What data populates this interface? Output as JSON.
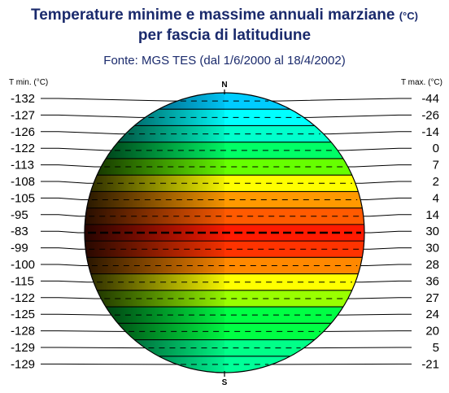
{
  "title": {
    "line1": "Temperature minime e massime annuali marziane",
    "unit": "(°C)",
    "line2": "per fascia di latitudiune",
    "source": "Fonte: MGS TES (dal 1/6/2000 al 18/4/2002)"
  },
  "axes": {
    "left_header": "T min. (°C)",
    "right_header": "T max. (°C)",
    "north": "N",
    "south": "S"
  },
  "bands": [
    {
      "min": "-132",
      "max": "-44",
      "color": "#00ccff"
    },
    {
      "min": "-127",
      "max": "-26",
      "color": "#00ffff"
    },
    {
      "min": "-126",
      "max": "-14",
      "color": "#00ffcc"
    },
    {
      "min": "-122",
      "max": "0",
      "color": "#00ff66"
    },
    {
      "min": "-113",
      "max": "7",
      "color": "#66ff00"
    },
    {
      "min": "-108",
      "max": "2",
      "color": "#ffff00"
    },
    {
      "min": "-105",
      "max": "4",
      "color": "#ff9900"
    },
    {
      "min": "-95",
      "max": "14",
      "color": "#ff5a00"
    },
    {
      "min": "-83",
      "max": "30",
      "color": "#ff1a00"
    },
    {
      "min": "-99",
      "max": "30",
      "color": "#ff3300"
    },
    {
      "min": "-100",
      "max": "28",
      "color": "#ff8800"
    },
    {
      "min": "-115",
      "max": "36",
      "color": "#ffff00"
    },
    {
      "min": "-122",
      "max": "27",
      "color": "#99ff00"
    },
    {
      "min": "-125",
      "max": "24",
      "color": "#00ff44"
    },
    {
      "min": "-128",
      "max": "20",
      "color": "#00ff44"
    },
    {
      "min": "-129",
      "max": "5",
      "color": "#00ff88"
    },
    {
      "min": "-129",
      "max": "-21",
      "color": "#00ff99"
    }
  ]
}
